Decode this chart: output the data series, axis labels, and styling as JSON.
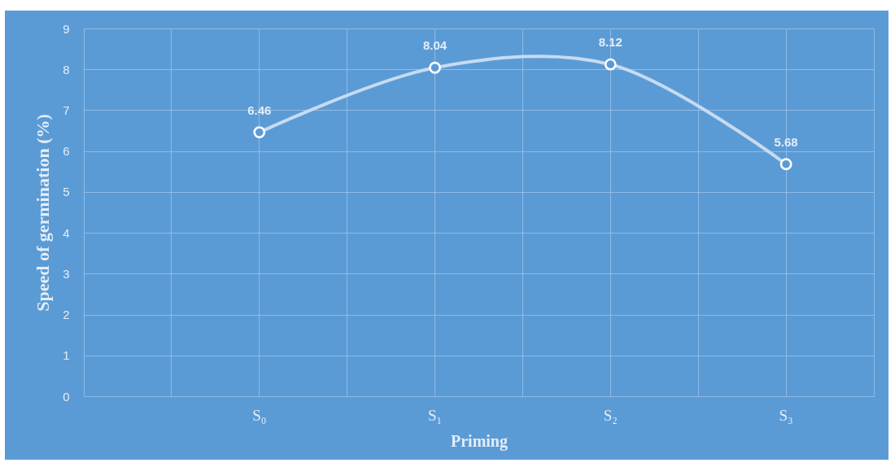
{
  "chart_data": {
    "type": "line",
    "xlabel": "Priming",
    "ylabel": "Speed of germination (%)",
    "categories": [
      "S₀",
      "S₁",
      "S₂",
      "S₃"
    ],
    "ylim": [
      0,
      9
    ],
    "yticks": [
      0,
      1,
      2,
      3,
      4,
      5,
      6,
      7,
      8,
      9
    ],
    "series": [
      {
        "color": "#c6dbf2",
        "values": [
          6.46,
          8.04,
          8.12,
          5.68
        ]
      }
    ],
    "data_labels": true,
    "grid": true,
    "marker": "circle",
    "line_style": "solid"
  }
}
